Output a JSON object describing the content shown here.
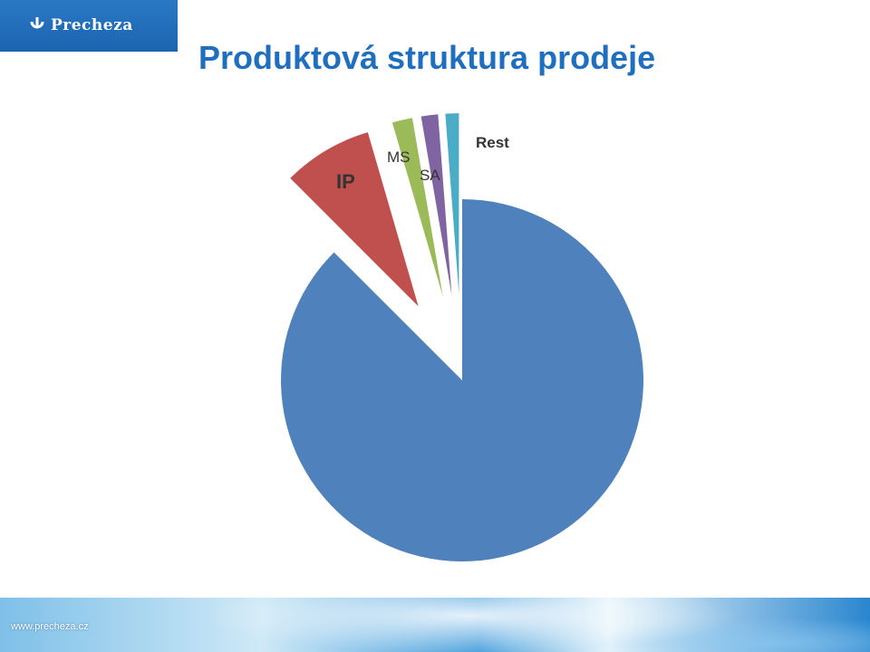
{
  "header": {
    "logo_text": "Precheza",
    "title": "Produktová struktura prodeje"
  },
  "footer": {
    "url": "www.precheza.cz"
  },
  "chart_data": {
    "type": "pie",
    "title": "",
    "legend": "none",
    "slices": [
      {
        "label": "Rest",
        "value": 87.5,
        "color": "#4f81bd",
        "exploded": false
      },
      {
        "label": "IP",
        "value": 8.0,
        "color": "#c0504d",
        "exploded": true
      },
      {
        "label": "MS",
        "value": 1.8,
        "color": "#9bbb59",
        "exploded": true
      },
      {
        "label": "SA",
        "value": 1.5,
        "color": "#8064a2",
        "exploded": true
      },
      {
        "label": "",
        "value": 1.2,
        "color": "#4bacc6",
        "exploded": true
      }
    ]
  }
}
